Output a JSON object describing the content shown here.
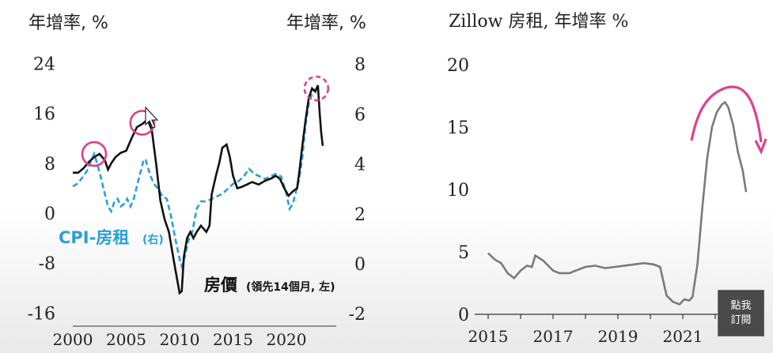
{
  "chart_data": [
    {
      "type": "line",
      "left_axis_title": "年增率, %",
      "right_axis_title": "年增率, %",
      "x_ticks": [
        "2000",
        "2005",
        "2010",
        "2015",
        "2020"
      ],
      "left_ticks": [
        "24",
        "16",
        "8",
        "0",
        "-8",
        "-16"
      ],
      "right_ticks": [
        "8",
        "6",
        "4",
        "2",
        "0",
        "-2"
      ],
      "ylim_left": [
        -16,
        24
      ],
      "ylim_right": [
        -2,
        8
      ],
      "xlim": [
        2000,
        2024
      ],
      "series": [
        {
          "name": "房價",
          "name_note": "(領先14個月, 左)",
          "axis": "left",
          "color": "#111111",
          "style": "solid",
          "points": [
            [
              2000,
              6.5
            ],
            [
              2000.5,
              6.5
            ],
            [
              2001,
              7.2
            ],
            [
              2001.5,
              8.2
            ],
            [
              2002,
              9
            ],
            [
              2002.5,
              9.5
            ],
            [
              2003,
              8.5
            ],
            [
              2003.3,
              7
            ],
            [
              2003.6,
              8
            ],
            [
              2004,
              9
            ],
            [
              2004.5,
              9.7
            ],
            [
              2005,
              10
            ],
            [
              2005.5,
              12
            ],
            [
              2006,
              13.8
            ],
            [
              2006.5,
              14.3
            ],
            [
              2007,
              15
            ],
            [
              2007.4,
              13.3
            ],
            [
              2007.8,
              8
            ],
            [
              2008.2,
              2
            ],
            [
              2008.6,
              -1
            ],
            [
              2009,
              -3
            ],
            [
              2009.3,
              -6
            ],
            [
              2009.6,
              -9
            ],
            [
              2010,
              -12.8
            ],
            [
              2010.2,
              -12.5
            ],
            [
              2010.4,
              -7
            ],
            [
              2010.7,
              -4
            ],
            [
              2011,
              -3
            ],
            [
              2011.3,
              -4
            ],
            [
              2011.6,
              -3
            ],
            [
              2012,
              -2
            ],
            [
              2012.5,
              -3
            ],
            [
              2012.8,
              -2
            ],
            [
              2013,
              3
            ],
            [
              2013.4,
              6
            ],
            [
              2013.7,
              8
            ],
            [
              2014,
              10.5
            ],
            [
              2014.4,
              11
            ],
            [
              2014.7,
              9
            ],
            [
              2015,
              6
            ],
            [
              2015.4,
              4
            ],
            [
              2015.8,
              4.2
            ],
            [
              2016.3,
              4.6
            ],
            [
              2016.8,
              5
            ],
            [
              2017.4,
              4.6
            ],
            [
              2018,
              5.2
            ],
            [
              2018.6,
              5.6
            ],
            [
              2019,
              6
            ],
            [
              2019.4,
              5.5
            ],
            [
              2019.8,
              4
            ],
            [
              2020.2,
              2.8
            ],
            [
              2020.6,
              3.5
            ],
            [
              2021,
              4
            ],
            [
              2021.2,
              6.5
            ],
            [
              2021.5,
              11
            ],
            [
              2021.8,
              15
            ],
            [
              2022.1,
              18.5
            ],
            [
              2022.4,
              20
            ],
            [
              2022.7,
              19.5
            ],
            [
              2022.95,
              20.5
            ],
            [
              2023.1,
              16.5
            ],
            [
              2023.25,
              13
            ],
            [
              2023.4,
              10.8
            ]
          ]
        },
        {
          "name": "CPI-房租",
          "name_note": "(右)",
          "axis": "right",
          "color": "#2a9fd6",
          "style": "dashed",
          "points": [
            [
              2000,
              3.1
            ],
            [
              2000.4,
              3.2
            ],
            [
              2000.8,
              3.4
            ],
            [
              2001.3,
              3.7
            ],
            [
              2001.7,
              4.1
            ],
            [
              2002,
              4.4
            ],
            [
              2002.3,
              4.0
            ],
            [
              2002.6,
              3.5
            ],
            [
              2003,
              2.8
            ],
            [
              2003.3,
              2.3
            ],
            [
              2003.6,
              2.1
            ],
            [
              2003.9,
              2.5
            ],
            [
              2004.2,
              2.6
            ],
            [
              2004.5,
              2.3
            ],
            [
              2004.8,
              2.4
            ],
            [
              2005.1,
              2.6
            ],
            [
              2005.4,
              2.3
            ],
            [
              2005.7,
              2.6
            ],
            [
              2006,
              3.1
            ],
            [
              2006.3,
              3.6
            ],
            [
              2006.6,
              4.1
            ],
            [
              2006.8,
              4.2
            ],
            [
              2007,
              3.9
            ],
            [
              2007.3,
              3.5
            ],
            [
              2007.6,
              3.2
            ],
            [
              2008,
              3.0
            ],
            [
              2008.4,
              2.7
            ],
            [
              2008.8,
              2.6
            ],
            [
              2009.2,
              1.9
            ],
            [
              2009.6,
              1.0
            ],
            [
              2010,
              0.2
            ],
            [
              2010.2,
              -0.1
            ],
            [
              2010.5,
              0.3
            ],
            [
              2010.8,
              0.9
            ],
            [
              2011.2,
              1.3
            ],
            [
              2011.6,
              2.2
            ],
            [
              2012,
              2.5
            ],
            [
              2012.5,
              2.5
            ],
            [
              2013,
              2.6
            ],
            [
              2013.5,
              2.7
            ],
            [
              2014,
              2.8
            ],
            [
              2014.5,
              3.0
            ],
            [
              2015,
              3.2
            ],
            [
              2015.5,
              3.3
            ],
            [
              2016,
              3.5
            ],
            [
              2016.5,
              3.8
            ],
            [
              2017,
              3.6
            ],
            [
              2017.5,
              3.5
            ],
            [
              2018,
              3.4
            ],
            [
              2018.5,
              3.5
            ],
            [
              2019,
              3.6
            ],
            [
              2019.5,
              3.5
            ],
            [
              2020,
              2.8
            ],
            [
              2020.3,
              2.2
            ],
            [
              2020.6,
              2.4
            ],
            [
              2020.9,
              2.9
            ],
            [
              2021.2,
              3.4
            ],
            [
              2021.5,
              4.3
            ],
            [
              2021.8,
              5.6
            ],
            [
              2022.1,
              6.4
            ],
            [
              2022.4,
              6.8
            ],
            [
              2022.7,
              7.0
            ]
          ]
        }
      ],
      "highlight_circles": [
        {
          "x": 2002,
          "y": 9.5,
          "color": "#e0408a",
          "style": "solid"
        },
        {
          "x": 2006.5,
          "y": 14.5,
          "color": "#e0408a",
          "style": "solid"
        },
        {
          "x": 2022.8,
          "y": 20,
          "color": "#e0408a",
          "style": "dashed"
        }
      ]
    },
    {
      "type": "line",
      "title": "Zillow 房租, 年增率 %",
      "x_ticks": [
        "2015",
        "2017",
        "2019",
        "2021"
      ],
      "y_ticks": [
        "20",
        "15",
        "10",
        "5",
        "0"
      ],
      "xlim": [
        2015,
        2023.3
      ],
      "ylim": [
        0,
        20
      ],
      "series": [
        {
          "name": "Zillow 房租",
          "color": "#7a7a7a",
          "style": "solid",
          "points": [
            [
              2015,
              4.9
            ],
            [
              2015.2,
              4.4
            ],
            [
              2015.4,
              4.1
            ],
            [
              2015.6,
              3.3
            ],
            [
              2015.8,
              2.9
            ],
            [
              2016,
              3.5
            ],
            [
              2016.2,
              3.9
            ],
            [
              2016.35,
              3.8
            ],
            [
              2016.45,
              4.7
            ],
            [
              2016.7,
              4.3
            ],
            [
              2017,
              3.5
            ],
            [
              2017.2,
              3.3
            ],
            [
              2017.5,
              3.3
            ],
            [
              2017.8,
              3.6
            ],
            [
              2018,
              3.8
            ],
            [
              2018.3,
              3.9
            ],
            [
              2018.6,
              3.7
            ],
            [
              2018.9,
              3.8
            ],
            [
              2019.2,
              3.9
            ],
            [
              2019.5,
              4.0
            ],
            [
              2019.8,
              4.1
            ],
            [
              2020.1,
              4.0
            ],
            [
              2020.3,
              3.8
            ],
            [
              2020.5,
              1.5
            ],
            [
              2020.7,
              1.0
            ],
            [
              2020.9,
              0.8
            ],
            [
              2021.05,
              1.2
            ],
            [
              2021.2,
              1.1
            ],
            [
              2021.3,
              1.4
            ],
            [
              2021.45,
              4.0
            ],
            [
              2021.6,
              8.5
            ],
            [
              2021.75,
              12.5
            ],
            [
              2021.9,
              15.0
            ],
            [
              2022.05,
              16.2
            ],
            [
              2022.2,
              16.8
            ],
            [
              2022.3,
              17.0
            ],
            [
              2022.4,
              16.6
            ],
            [
              2022.55,
              15.2
            ],
            [
              2022.7,
              13.0
            ],
            [
              2022.85,
              11.5
            ],
            [
              2022.95,
              9.8
            ]
          ]
        }
      ],
      "trend_arrow_color": "#e0408a"
    }
  ],
  "left_legend": {
    "rent_label": "CPI-房租",
    "rent_note": "(右)",
    "price_label": "房價",
    "price_note": "(領先14個月, 左)"
  },
  "subscribe_button": {
    "line1": "點我",
    "line2": "訂閱"
  }
}
